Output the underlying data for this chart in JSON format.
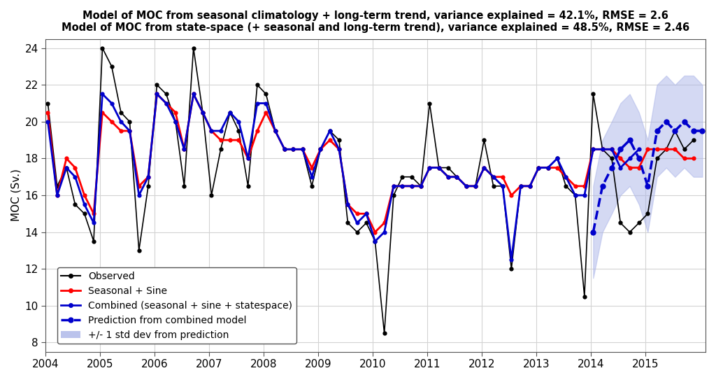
{
  "title_line1": "Model of MOC from seasonal climatology + long-term trend, variance explained = 42.1%, RMSE = 2.6",
  "title_line2": "Model of MOC from state-space (+ seasonal and long-term trend), variance explained = 48.5%, RMSE = 2.46",
  "ylabel": "MOC (Sv.)",
  "ylim": [
    7.5,
    24.5
  ],
  "yticks": [
    8,
    10,
    12,
    14,
    16,
    18,
    20,
    22,
    24
  ],
  "xlim_start": 2004.0,
  "xlim_end": 2016.1,
  "background_color": "#ffffff",
  "observed_color": "#000000",
  "seasonal_color": "#ff0000",
  "combined_color": "#0000cc",
  "prediction_color": "#0000cc",
  "shading_color": "#aab4e8",
  "shading_alpha": 0.5,
  "grid_color": "#d3d3d3",
  "vline_color": "#d3d3d3",
  "vline_years": [
    2005,
    2006,
    2007,
    2008,
    2009,
    2010,
    2011,
    2012,
    2013,
    2014,
    2015
  ],
  "observed_x": [
    2004.04,
    2004.21,
    2004.38,
    2004.54,
    2004.71,
    2004.88,
    2005.04,
    2005.21,
    2005.38,
    2005.54,
    2005.71,
    2005.88,
    2006.04,
    2006.21,
    2006.38,
    2006.54,
    2006.71,
    2006.88,
    2007.04,
    2007.21,
    2007.38,
    2007.54,
    2007.71,
    2007.88,
    2008.04,
    2008.21,
    2008.38,
    2008.54,
    2008.71,
    2008.88,
    2009.04,
    2009.21,
    2009.38,
    2009.54,
    2009.71,
    2009.88,
    2010.04,
    2010.21,
    2010.38,
    2010.54,
    2010.71,
    2010.88,
    2011.04,
    2011.21,
    2011.38,
    2011.54,
    2011.71,
    2011.88,
    2012.04,
    2012.21,
    2012.38,
    2012.54,
    2012.71,
    2012.88,
    2013.04,
    2013.21,
    2013.38,
    2013.54,
    2013.71,
    2013.88,
    2014.04,
    2014.21,
    2014.38,
    2014.54,
    2014.71,
    2014.88,
    2015.04,
    2015.21,
    2015.38,
    2015.54,
    2015.71,
    2015.88
  ],
  "observed_y": [
    21.0,
    16.5,
    17.5,
    15.5,
    15.0,
    13.5,
    24.0,
    23.0,
    20.5,
    20.0,
    13.0,
    16.5,
    22.0,
    21.5,
    20.0,
    16.5,
    24.0,
    20.5,
    16.0,
    18.5,
    20.5,
    19.5,
    16.5,
    22.0,
    21.5,
    19.5,
    18.5,
    18.5,
    18.5,
    16.5,
    18.5,
    19.5,
    19.0,
    14.5,
    14.0,
    14.5,
    13.5,
    8.5,
    16.0,
    17.0,
    17.0,
    16.5,
    21.0,
    17.5,
    17.5,
    17.0,
    16.5,
    16.5,
    19.0,
    16.5,
    16.5,
    12.0,
    16.5,
    16.5,
    17.5,
    17.5,
    18.0,
    16.5,
    16.0,
    10.5,
    21.5,
    18.5,
    18.0,
    14.5,
    14.0,
    14.5,
    15.0,
    18.0,
    18.5,
    19.5,
    18.5,
    19.0
  ],
  "seasonal_x": [
    2004.04,
    2004.21,
    2004.38,
    2004.54,
    2004.71,
    2004.88,
    2005.04,
    2005.21,
    2005.38,
    2005.54,
    2005.71,
    2005.88,
    2006.04,
    2006.21,
    2006.38,
    2006.54,
    2006.71,
    2006.88,
    2007.04,
    2007.21,
    2007.38,
    2007.54,
    2007.71,
    2007.88,
    2008.04,
    2008.21,
    2008.38,
    2008.54,
    2008.71,
    2008.88,
    2009.04,
    2009.21,
    2009.38,
    2009.54,
    2009.71,
    2009.88,
    2010.04,
    2010.21,
    2010.38,
    2010.54,
    2010.71,
    2010.88,
    2011.04,
    2011.21,
    2011.38,
    2011.54,
    2011.71,
    2011.88,
    2012.04,
    2012.21,
    2012.38,
    2012.54,
    2012.71,
    2012.88,
    2013.04,
    2013.21,
    2013.38,
    2013.54,
    2013.71,
    2013.88,
    2014.04,
    2014.21,
    2014.38,
    2014.54,
    2014.71,
    2014.88,
    2015.04,
    2015.21,
    2015.38,
    2015.54,
    2015.71,
    2015.88
  ],
  "seasonal_y": [
    20.5,
    16.0,
    18.0,
    17.5,
    16.0,
    15.0,
    20.5,
    20.0,
    19.5,
    19.5,
    16.5,
    17.0,
    21.5,
    21.0,
    20.5,
    18.5,
    21.5,
    20.5,
    19.5,
    19.0,
    19.0,
    19.0,
    18.0,
    19.5,
    20.5,
    19.5,
    18.5,
    18.5,
    18.5,
    17.5,
    18.5,
    19.0,
    18.5,
    15.5,
    15.0,
    15.0,
    14.0,
    14.5,
    16.5,
    16.5,
    16.5,
    16.5,
    17.5,
    17.5,
    17.0,
    17.0,
    16.5,
    16.5,
    17.5,
    17.0,
    17.0,
    16.0,
    16.5,
    16.5,
    17.5,
    17.5,
    17.5,
    17.0,
    16.5,
    16.5,
    18.5,
    18.5,
    18.5,
    18.0,
    17.5,
    17.5,
    18.5,
    18.5,
    18.5,
    18.5,
    18.0,
    18.0
  ],
  "combined_x": [
    2004.04,
    2004.21,
    2004.38,
    2004.54,
    2004.71,
    2004.88,
    2005.04,
    2005.21,
    2005.38,
    2005.54,
    2005.71,
    2005.88,
    2006.04,
    2006.21,
    2006.38,
    2006.54,
    2006.71,
    2006.88,
    2007.04,
    2007.21,
    2007.38,
    2007.54,
    2007.71,
    2007.88,
    2008.04,
    2008.21,
    2008.38,
    2008.54,
    2008.71,
    2008.88,
    2009.04,
    2009.21,
    2009.38,
    2009.54,
    2009.71,
    2009.88,
    2010.04,
    2010.21,
    2010.38,
    2010.54,
    2010.71,
    2010.88,
    2011.04,
    2011.21,
    2011.38,
    2011.54,
    2011.71,
    2011.88,
    2012.04,
    2012.21,
    2012.38,
    2012.54,
    2012.71,
    2012.88,
    2013.04,
    2013.21,
    2013.38,
    2013.54,
    2013.71,
    2013.88,
    2014.04,
    2014.21,
    2014.38,
    2014.54,
    2014.71,
    2014.88
  ],
  "combined_y": [
    20.0,
    16.0,
    17.5,
    17.0,
    15.5,
    14.5,
    21.5,
    21.0,
    20.0,
    19.5,
    16.0,
    17.0,
    21.5,
    21.0,
    20.0,
    18.5,
    21.5,
    20.5,
    19.5,
    19.5,
    20.5,
    20.0,
    18.0,
    21.0,
    21.0,
    19.5,
    18.5,
    18.5,
    18.5,
    17.0,
    18.5,
    19.5,
    18.5,
    15.5,
    14.5,
    15.0,
    13.5,
    14.0,
    16.5,
    16.5,
    16.5,
    16.5,
    17.5,
    17.5,
    17.0,
    17.0,
    16.5,
    16.5,
    17.5,
    17.0,
    16.5,
    12.5,
    16.5,
    16.5,
    17.5,
    17.5,
    18.0,
    17.0,
    16.0,
    16.0,
    18.5,
    18.5,
    18.5,
    17.5,
    18.0,
    18.5
  ],
  "prediction_x": [
    2014.04,
    2014.21,
    2014.38,
    2014.54,
    2014.71,
    2014.88,
    2015.04,
    2015.21,
    2015.38,
    2015.54,
    2015.71,
    2015.88,
    2016.04
  ],
  "prediction_y": [
    14.0,
    16.5,
    17.5,
    18.5,
    19.0,
    18.0,
    16.5,
    19.5,
    20.0,
    19.5,
    20.0,
    19.5,
    19.5
  ],
  "shading_upper": [
    16.5,
    19.0,
    20.0,
    21.0,
    21.5,
    20.5,
    19.0,
    22.0,
    22.5,
    22.0,
    22.5,
    22.5,
    22.0
  ],
  "shading_lower": [
    11.5,
    14.0,
    15.0,
    16.0,
    16.5,
    15.5,
    14.0,
    17.0,
    17.5,
    17.0,
    17.5,
    17.0,
    17.0
  ],
  "xticks": [
    2004,
    2005,
    2006,
    2007,
    2008,
    2009,
    2010,
    2011,
    2012,
    2013,
    2014,
    2015
  ],
  "legend_labels": [
    "Observed",
    "Seasonal + Sine",
    "Combined (seasonal + sine + statespace)",
    "Prediction from combined model",
    "+/- 1 std dev from prediction"
  ],
  "legend_fontsize": 10,
  "title_fontsize": 10.5,
  "axis_label_fontsize": 11
}
